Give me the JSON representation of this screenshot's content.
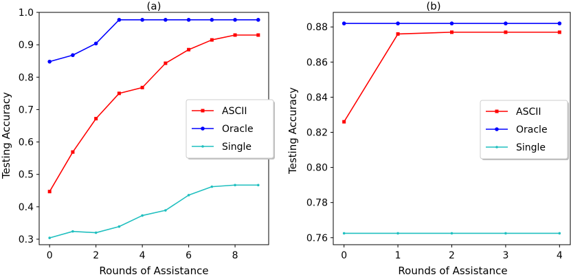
{
  "chart_data": [
    {
      "type": "line",
      "title": "(a)",
      "xlabel": "Rounds of Assistance",
      "ylabel": "Testing Accuracy",
      "xlim": [
        -0.45,
        9.45
      ],
      "ylim": [
        0.283,
        1.0
      ],
      "xticks": [
        0,
        2,
        4,
        6,
        8
      ],
      "xtick_labels": [
        "0",
        "2",
        "4",
        "6",
        "8"
      ],
      "yticks": [
        0.3,
        0.4,
        0.5,
        0.6,
        0.7,
        0.8,
        0.9,
        1.0
      ],
      "ytick_labels": [
        "0.3",
        "0.4",
        "0.5",
        "0.6",
        "0.7",
        "0.8",
        "0.9",
        "1.0"
      ],
      "legend_position": "center-right",
      "x": [
        0,
        1,
        2,
        3,
        4,
        5,
        6,
        7,
        8,
        9
      ],
      "series": [
        {
          "name": "ASCII",
          "color": "#ff0000",
          "marker": "square",
          "values": [
            0.447,
            0.569,
            0.672,
            0.75,
            0.768,
            0.843,
            0.885,
            0.915,
            0.93,
            0.93
          ]
        },
        {
          "name": "Oracle",
          "color": "#0000ff",
          "marker": "circle",
          "values": [
            0.848,
            0.868,
            0.904,
            0.977,
            0.977,
            0.977,
            0.977,
            0.977,
            0.977,
            0.977
          ]
        },
        {
          "name": "Single",
          "color": "#1fbfbf",
          "marker": "dot",
          "values": [
            0.304,
            0.324,
            0.32,
            0.339,
            0.373,
            0.389,
            0.436,
            0.462,
            0.467,
            0.467
          ]
        }
      ]
    },
    {
      "type": "line",
      "title": "(b)",
      "xlabel": "Rounds of Assistance",
      "ylabel": "Testing Accuracy",
      "xlim": [
        -0.2,
        4.2
      ],
      "ylim": [
        0.756,
        0.8883
      ],
      "xticks": [
        0,
        1,
        2,
        3,
        4
      ],
      "xtick_labels": [
        "0",
        "1",
        "2",
        "3",
        "4"
      ],
      "yticks": [
        0.76,
        0.78,
        0.8,
        0.82,
        0.84,
        0.86,
        0.88
      ],
      "ytick_labels": [
        "0.76",
        "0.78",
        "0.80",
        "0.82",
        "0.84",
        "0.86",
        "0.88"
      ],
      "legend_position": "center-right",
      "x": [
        0,
        1,
        2,
        3,
        4
      ],
      "series": [
        {
          "name": "ASCII",
          "color": "#ff0000",
          "marker": "square",
          "values": [
            0.826,
            0.876,
            0.877,
            0.877,
            0.877
          ]
        },
        {
          "name": "Oracle",
          "color": "#0000ff",
          "marker": "circle",
          "values": [
            0.882,
            0.882,
            0.882,
            0.882,
            0.882
          ]
        },
        {
          "name": "Single",
          "color": "#1fbfbf",
          "marker": "dot",
          "values": [
            0.7625,
            0.7625,
            0.7625,
            0.7625,
            0.7625
          ]
        }
      ]
    }
  ]
}
